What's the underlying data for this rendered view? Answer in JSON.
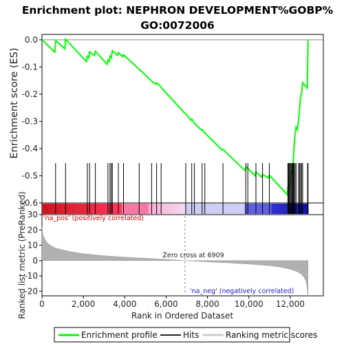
{
  "chart_data": {
    "type": "line",
    "title": "Enrichment plot: NEPHRON DEVELOPMENT%GOBP%\nGO:0072006",
    "xlabel": "Rank in Ordered Dataset",
    "es_panel": {
      "ylabel": "Enrichment score (ES)",
      "ylim": [
        -0.6,
        0.02
      ],
      "yticks": [
        "0.0",
        "-0.1",
        "-0.2",
        "-0.3",
        "-0.4",
        "-0.5",
        "-0.6"
      ],
      "ytick_values": [
        0.0,
        -0.1,
        -0.2,
        -0.3,
        -0.4,
        -0.5,
        -0.6
      ],
      "series_name": "Enrichment profile",
      "line_color": "#00ff00",
      "x": [
        0,
        620,
        660,
        1100,
        1140,
        2150,
        2190,
        2260,
        2300,
        2540,
        2580,
        3150,
        3190,
        3250,
        3290,
        3350,
        3400,
        3650,
        3690,
        3900,
        3940,
        4650,
        4700,
        5250,
        5300,
        5500,
        5540,
        5720,
        5760,
        6900,
        6950,
        7200,
        7240,
        7330,
        7370,
        7700,
        7740,
        7830,
        7870,
        8700,
        8750,
        9800,
        9850,
        9900,
        9950,
        10300,
        10340,
        10620,
        10660,
        10950,
        10990,
        11860,
        11880,
        11920,
        11960,
        12000,
        12040,
        12080,
        12120,
        12150,
        12180,
        12230,
        12280,
        12340,
        12400,
        12450,
        12500,
        12550,
        12600,
        12820,
        12840,
        12860
      ],
      "y": [
        0.0,
        -0.045,
        -0.002,
        -0.033,
        0.002,
        -0.08,
        -0.06,
        -0.066,
        -0.044,
        -0.058,
        -0.042,
        -0.09,
        -0.075,
        -0.08,
        -0.06,
        -0.066,
        -0.04,
        -0.057,
        -0.047,
        -0.062,
        -0.055,
        -0.105,
        -0.108,
        -0.148,
        -0.152,
        -0.163,
        -0.158,
        -0.17,
        -0.175,
        -0.27,
        -0.272,
        -0.296,
        -0.291,
        -0.302,
        -0.307,
        -0.332,
        -0.33,
        -0.338,
        -0.343,
        -0.405,
        -0.403,
        -0.48,
        -0.474,
        -0.468,
        -0.473,
        -0.5,
        -0.486,
        -0.505,
        -0.495,
        -0.508,
        -0.498,
        -0.57,
        -0.545,
        -0.548,
        -0.54,
        -0.512,
        -0.488,
        -0.492,
        -0.468,
        -0.44,
        -0.398,
        -0.35,
        -0.322,
        -0.33,
        -0.298,
        -0.255,
        -0.208,
        -0.2,
        -0.157,
        -0.178,
        -0.1,
        0.0
      ]
    },
    "hits_panel": {
      "series_name": "Hits",
      "hit_ranks": [
        660,
        1140,
        2190,
        2300,
        2580,
        3190,
        3290,
        3350,
        3400,
        3690,
        3940,
        4700,
        5300,
        5540,
        5760,
        6950,
        7240,
        7370,
        7740,
        7870,
        8750,
        9850,
        9950,
        10340,
        10660,
        10990,
        11880,
        11920,
        11960,
        12000,
        12040,
        12080,
        12120,
        12150,
        12180,
        12230,
        12280,
        12400,
        12450,
        12500,
        12550,
        12600,
        12840,
        12860
      ]
    },
    "metric_panel": {
      "ylabel": "Ranked list metric (PreRanked)",
      "ylim": [
        -23,
        30
      ],
      "yticks": [
        "30",
        "20",
        "10",
        "0",
        "-10",
        "-20"
      ],
      "ytick_values": [
        30,
        20,
        10,
        0,
        -10,
        -20
      ],
      "series_name": "Ranking metric scores",
      "fill_color": "#b0b0b0",
      "x": [
        0,
        50,
        150,
        300,
        600,
        1000,
        1500,
        2000,
        3000,
        4000,
        5000,
        6000,
        6909,
        8000,
        9000,
        10000,
        11000,
        11500,
        12000,
        12300,
        12500,
        12650,
        12750,
        12800,
        12860
      ],
      "y": [
        22,
        17,
        13.5,
        11,
        8.5,
        7,
        5.5,
        4.5,
        3.2,
        2.3,
        1.5,
        0.8,
        0,
        -0.8,
        -1.5,
        -2.3,
        -3.3,
        -4.2,
        -5.6,
        -7,
        -8.5,
        -10.5,
        -13,
        -16,
        -23
      ],
      "zero_cross_x": 6909,
      "annotations": [
        "'na_pos' (positively correlated)",
        "Zero cross at 6909",
        "'na_neg' (negatively correlated)"
      ]
    },
    "x_axis": {
      "xlim": [
        0,
        13600
      ],
      "xticks": [
        "0",
        "2,000",
        "4,000",
        "6,000",
        "8,000",
        "10,000",
        "12,000"
      ],
      "xtick_values": [
        0,
        2000,
        4000,
        6000,
        8000,
        10000,
        12000
      ],
      "n_genes": 12860
    },
    "legend": {
      "placement": "bottom",
      "items": [
        "Enrichment profile",
        "Hits",
        "Ranking metric scores"
      ]
    }
  }
}
